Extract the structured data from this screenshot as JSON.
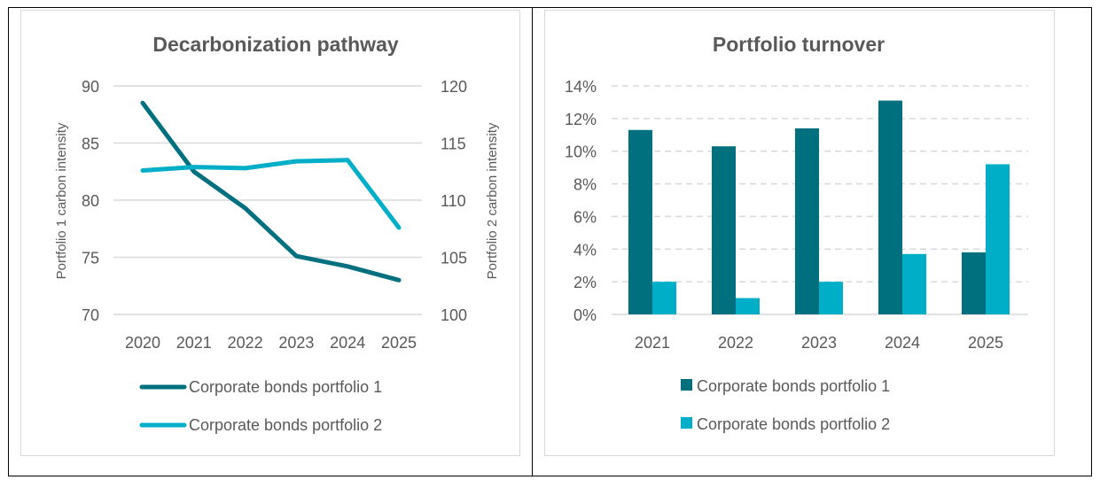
{
  "colors": {
    "series1": "#00707f",
    "series2": "#00aec7",
    "grid": "#d9d9d9",
    "text": "#595959"
  },
  "chart_data": [
    {
      "type": "line",
      "title": "Decarbonization pathway",
      "x": [
        "2020",
        "2021",
        "2022",
        "2023",
        "2024",
        "2025"
      ],
      "y_left": {
        "label": "Portfolio 1 carbon intensity",
        "lim": [
          70,
          90
        ],
        "ticks": [
          "70",
          "75",
          "80",
          "85",
          "90"
        ]
      },
      "y_right": {
        "label": "Portfolio 2 carbon intensity",
        "lim": [
          100,
          120
        ],
        "ticks": [
          "100",
          "105",
          "110",
          "115",
          "120"
        ]
      },
      "series": [
        {
          "name": "Corporate bonds portfolio 1",
          "axis": "left",
          "values": [
            88.5,
            82.5,
            79.3,
            75.1,
            74.2,
            73.0
          ]
        },
        {
          "name": "Corporate bonds portfolio 2",
          "axis": "right",
          "values": [
            112.6,
            112.9,
            112.8,
            113.4,
            113.5,
            107.6
          ]
        }
      ],
      "grid": true,
      "legend": "bottom"
    },
    {
      "type": "bar",
      "title": "Portfolio turnover",
      "categories": [
        "2021",
        "2022",
        "2023",
        "2024",
        "2025"
      ],
      "ylim": [
        0,
        14
      ],
      "yticks": [
        "0%",
        "2%",
        "4%",
        "6%",
        "8%",
        "10%",
        "12%",
        "14%"
      ],
      "series": [
        {
          "name": "Corporate bonds portfolio 1",
          "values": [
            11.3,
            10.3,
            11.4,
            13.1,
            3.8
          ]
        },
        {
          "name": "Corporate bonds portfolio 2",
          "values": [
            2.0,
            1.0,
            2.0,
            3.7,
            9.2
          ]
        }
      ],
      "grid": true,
      "legend": "bottom"
    }
  ]
}
